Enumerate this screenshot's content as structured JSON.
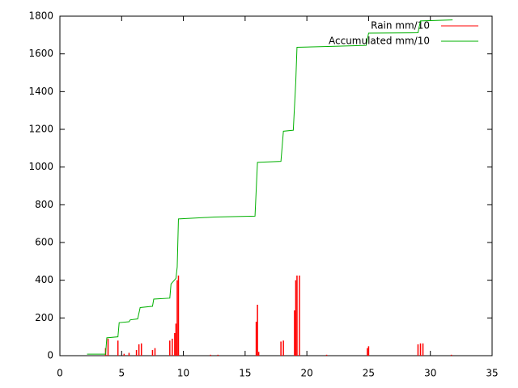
{
  "chart_data": {
    "type": "impulse-line",
    "xlim": [
      0,
      35
    ],
    "xticks": [
      0,
      5,
      10,
      15,
      20,
      25,
      30,
      35
    ],
    "ylim": [
      0,
      1800
    ],
    "yticks": [
      0,
      200,
      400,
      600,
      800,
      1000,
      1200,
      1400,
      1600,
      1800
    ],
    "legend": "top-right",
    "series": [
      {
        "name": "Rain mm/10",
        "color": "#ff0000",
        "style": "impulses",
        "x": [
          3.7,
          3.9,
          4.7,
          5.2,
          5.6,
          6.2,
          6.4,
          6.6,
          7.5,
          7.7,
          8.9,
          9.1,
          9.3,
          9.4,
          9.5,
          9.6,
          12.2,
          12.8,
          15.9,
          16.0,
          16.1,
          17.9,
          18.1,
          19.0,
          19.1,
          19.2,
          19.4,
          21.6,
          24.9,
          25.0,
          29.0,
          29.2,
          29.4,
          31.7
        ],
        "values": [
          40,
          90,
          80,
          10,
          15,
          30,
          60,
          65,
          30,
          40,
          80,
          90,
          120,
          170,
          400,
          425,
          5,
          5,
          180,
          270,
          20,
          75,
          80,
          240,
          400,
          425,
          425,
          5,
          40,
          50,
          60,
          65,
          65,
          5
        ]
      },
      {
        "name": "Accumulated mm/10",
        "color": "#00b000",
        "style": "lines",
        "x": [
          2.2,
          3.7,
          3.8,
          4.7,
          4.8,
          5.6,
          5.7,
          6.3,
          6.5,
          7.5,
          7.6,
          8.9,
          9.0,
          9.4,
          9.5,
          9.6,
          12.5,
          15.8,
          16.0,
          17.9,
          18.1,
          18.9,
          19.1,
          19.2,
          22,
          24.8,
          25.0,
          29.0,
          29.2,
          31.8
        ],
        "values": [
          8,
          8,
          95,
          100,
          175,
          180,
          190,
          195,
          255,
          262,
          300,
          305,
          380,
          410,
          470,
          725,
          735,
          740,
          1025,
          1030,
          1190,
          1195,
          1450,
          1635,
          1640,
          1645,
          1710,
          1712,
          1775,
          1780
        ]
      }
    ]
  }
}
